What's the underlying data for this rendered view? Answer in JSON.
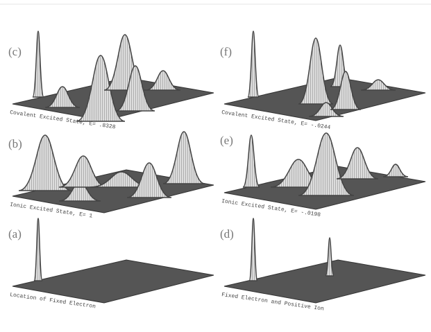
{
  "panels": [
    {
      "label": "(c)",
      "caption": "Covalent Excited State, E= .8328"
    },
    {
      "label": "(b)",
      "caption": "Ionic Excited State, E= 1"
    },
    {
      "label": "(a)",
      "caption": "Location of Fixed Electron"
    },
    {
      "label": "(f)",
      "caption": "Covalent Excited State, E= -.0244"
    },
    {
      "label": "(e)",
      "caption": "Ionic Excited State, E= -.0198"
    },
    {
      "label": "(d)",
      "caption": "Fixed Electron and Positive Ion"
    }
  ]
}
